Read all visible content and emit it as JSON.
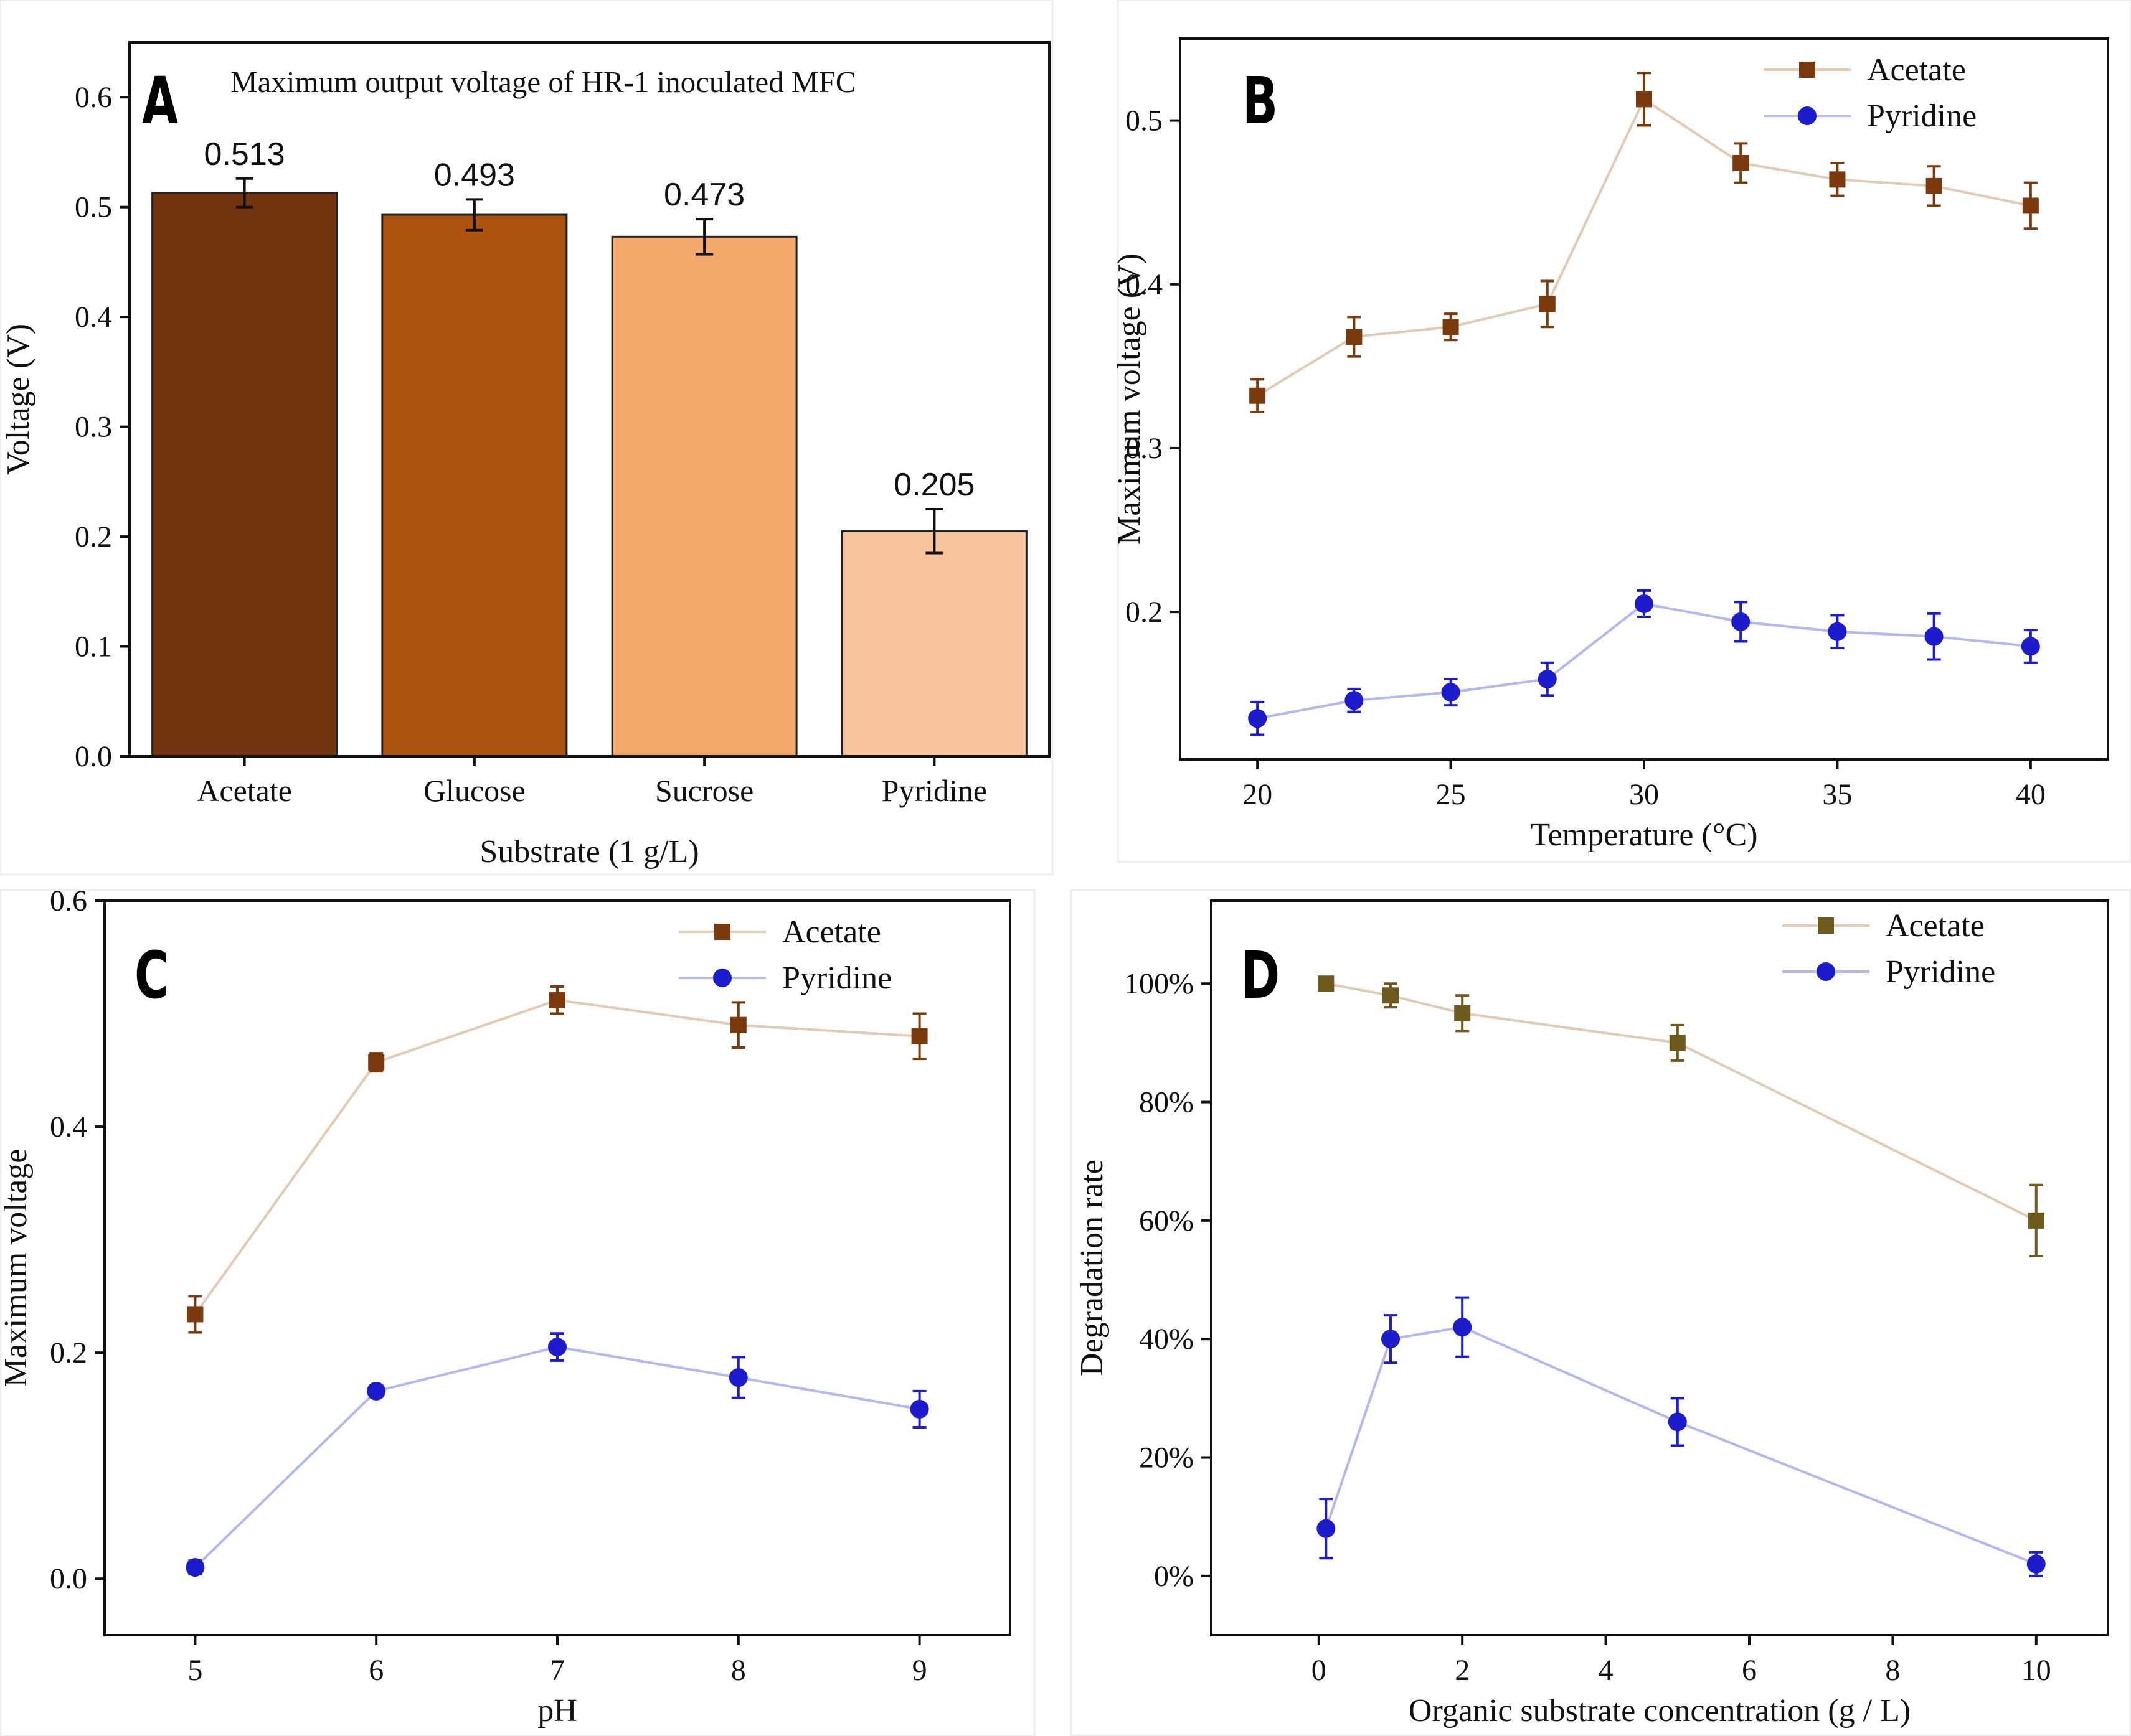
{
  "colors": {
    "acetate_marker": "#7a3a0d",
    "acetate_line": "#e2cbb4",
    "pyridine_marker": "#1c1ccc",
    "pyridine_line": "#b4b8ef",
    "acetate_marker_d": "#6e5a1c",
    "bars": [
      "#733510",
      "#ac520f",
      "#f3a86c",
      "#f7c39c"
    ]
  },
  "chart_data": [
    {
      "panel": "A",
      "type": "bar",
      "title": "Maximum output voltage of HR-1 inoculated MFC",
      "xlabel": "Substrate (1 g/L)",
      "ylabel": "Voltage (V)",
      "ylim": [
        0,
        0.65
      ],
      "yticks": [
        0.0,
        0.1,
        0.2,
        0.3,
        0.4,
        0.5,
        0.6
      ],
      "ytick_labels": [
        "0.0",
        "0.1",
        "0.2",
        "0.3",
        "0.4",
        "0.5",
        "0.6"
      ],
      "categories": [
        "Acetate",
        "Glucose",
        "Sucrose",
        "Pyridine"
      ],
      "values": [
        0.513,
        0.493,
        0.473,
        0.205
      ],
      "errors": [
        0.013,
        0.014,
        0.016,
        0.02
      ],
      "data_labels": [
        "0.513",
        "0.493",
        "0.473",
        "0.205"
      ]
    },
    {
      "panel": "B",
      "type": "line",
      "title": "",
      "xlabel": "Temperature (°C)",
      "ylabel": "Maximum voltage (V)",
      "xlim": [
        18,
        42
      ],
      "ylim": [
        0.11,
        0.55
      ],
      "xticks": [
        20,
        25,
        30,
        35,
        40
      ],
      "xtick_labels": [
        "20",
        "25",
        "30",
        "35",
        "40"
      ],
      "yticks": [
        0.2,
        0.3,
        0.4,
        0.5
      ],
      "ytick_labels": [
        "0.2",
        "0.3",
        "0.4",
        "0.5"
      ],
      "x": [
        20,
        22.5,
        25,
        27.5,
        30,
        32.5,
        35,
        37.5,
        40
      ],
      "legend": "top-right",
      "series": [
        {
          "name": "Acetate",
          "marker": "square",
          "values": [
            0.332,
            0.368,
            0.374,
            0.388,
            0.513,
            0.474,
            0.464,
            0.46,
            0.448
          ],
          "errors": [
            0.01,
            0.012,
            0.008,
            0.014,
            0.016,
            0.012,
            0.01,
            0.012,
            0.014
          ]
        },
        {
          "name": "Pyridine",
          "marker": "circle",
          "values": [
            0.135,
            0.146,
            0.151,
            0.159,
            0.205,
            0.194,
            0.188,
            0.185,
            0.179
          ],
          "errors": [
            0.01,
            0.007,
            0.008,
            0.01,
            0.008,
            0.012,
            0.01,
            0.014,
            0.01
          ]
        }
      ]
    },
    {
      "panel": "C",
      "type": "line",
      "title": "",
      "xlabel": "pH",
      "ylabel": "Maximum voltage",
      "xlim": [
        4.5,
        9.5
      ],
      "ylim": [
        -0.05,
        0.6
      ],
      "xticks": [
        5,
        6,
        7,
        8,
        9
      ],
      "xtick_labels": [
        "5",
        "6",
        "7",
        "8",
        "9"
      ],
      "yticks": [
        0.0,
        0.2,
        0.4,
        0.6
      ],
      "ytick_labels": [
        "0.0",
        "0.2",
        "0.4",
        "0.6"
      ],
      "x": [
        5,
        6,
        7,
        8,
        9
      ],
      "legend": "top-right",
      "series": [
        {
          "name": "Acetate",
          "marker": "square",
          "values": [
            0.234,
            0.457,
            0.512,
            0.49,
            0.48
          ],
          "errors": [
            0.016,
            0.008,
            0.012,
            0.02,
            0.02
          ]
        },
        {
          "name": "Pyridine",
          "marker": "circle",
          "values": [
            0.01,
            0.166,
            0.205,
            0.178,
            0.15
          ],
          "errors": [
            0.006,
            0.005,
            0.012,
            0.018,
            0.016
          ]
        }
      ]
    },
    {
      "panel": "D",
      "type": "line",
      "title": "",
      "xlabel": "Organic substrate concentration (g / L)",
      "ylabel": "Degradation rate",
      "xlim": [
        -1.5,
        11
      ],
      "ylim": [
        -10,
        114
      ],
      "xticks": [
        0,
        2,
        4,
        6,
        8,
        10
      ],
      "xtick_labels": [
        "0",
        "2",
        "4",
        "6",
        "8",
        "10"
      ],
      "yticks": [
        0,
        20,
        40,
        60,
        80,
        100
      ],
      "ytick_labels": [
        "0%",
        "20%",
        "40%",
        "60%",
        "80%",
        "100%"
      ],
      "x": [
        0.1,
        1,
        2,
        5,
        10
      ],
      "legend": "top-right",
      "series": [
        {
          "name": "Acetate",
          "marker": "square",
          "values": [
            100,
            98,
            95,
            90,
            60
          ],
          "errors": [
            1,
            2,
            3,
            3,
            6
          ]
        },
        {
          "name": "Pyridine",
          "marker": "circle",
          "values": [
            8,
            40,
            42,
            26,
            2
          ],
          "errors": [
            5,
            4,
            5,
            4,
            2
          ]
        }
      ]
    }
  ]
}
